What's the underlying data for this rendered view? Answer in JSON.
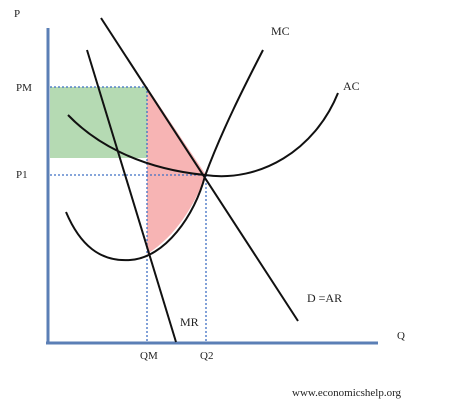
{
  "labels": {
    "y_axis": "P",
    "x_axis": "Q",
    "pm": "PM",
    "p1": "P1",
    "qm": "QM",
    "q2": "Q2",
    "mc": "MC",
    "ac": "AC",
    "demand": "D =AR",
    "mr": "MR",
    "credit": "www.economicshelp.org"
  },
  "colors": {
    "axis": "#5b7fb6",
    "curve": "#111111",
    "guide": "#3f6fc4",
    "profit_fill": "#b5dab3",
    "deadweight_fill": "#f7b4b4"
  }
}
